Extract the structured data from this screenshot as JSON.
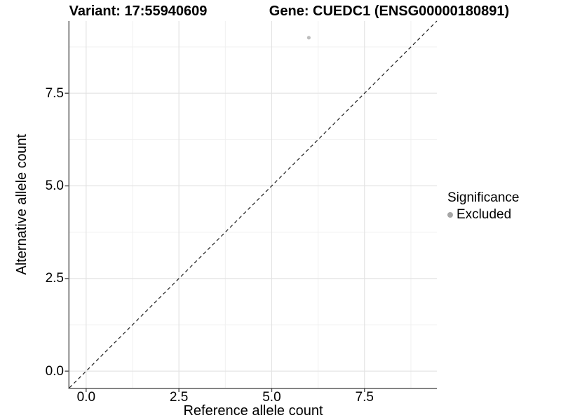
{
  "titles": {
    "variant": "Variant: 17:55940609",
    "gene": "Gene: CUEDC1 (ENSG00000180891)"
  },
  "legend": {
    "title": "Significance",
    "items": [
      {
        "label": "Excluded",
        "key_color": "#A6A6A6"
      }
    ]
  },
  "colors": {
    "background": "#FFFFFF",
    "text": "#000000",
    "point": "#BDBDBD",
    "grid_major": "#E3E3E3",
    "grid_minor": "#F0F0F0",
    "axis_line": "#4D4D4D",
    "identity_line": "#1A1A1A"
  },
  "chart_data": {
    "type": "scatter",
    "title": "Variant: 17:55940609 | Gene: CUEDC1 (ENSG00000180891)",
    "xlabel": "Reference allele count",
    "ylabel": "Alternative allele count",
    "xlim": [
      -0.45,
      9.45
    ],
    "ylim": [
      -0.45,
      9.45
    ],
    "x_ticks": [
      0.0,
      2.5,
      5.0,
      7.5
    ],
    "x_tick_labels": [
      "0.0",
      "2.5",
      "5.0",
      "7.5"
    ],
    "y_ticks": [
      0.0,
      2.5,
      5.0,
      7.5
    ],
    "y_tick_labels": [
      "0.0",
      "2.5",
      "5.0",
      "7.5"
    ],
    "x_minor_ticks": [
      1.25,
      3.75,
      6.25,
      8.75
    ],
    "y_minor_ticks": [
      1.25,
      3.75,
      6.25,
      8.75
    ],
    "grid": true,
    "legend_position": "right",
    "series": [
      {
        "name": "Excluded",
        "color": "#BDBDBD",
        "points": [
          {
            "x": 6,
            "y": 9
          }
        ]
      }
    ],
    "reference_line": {
      "type": "identity",
      "slope": 1,
      "intercept": 0,
      "style": "dashed"
    }
  }
}
